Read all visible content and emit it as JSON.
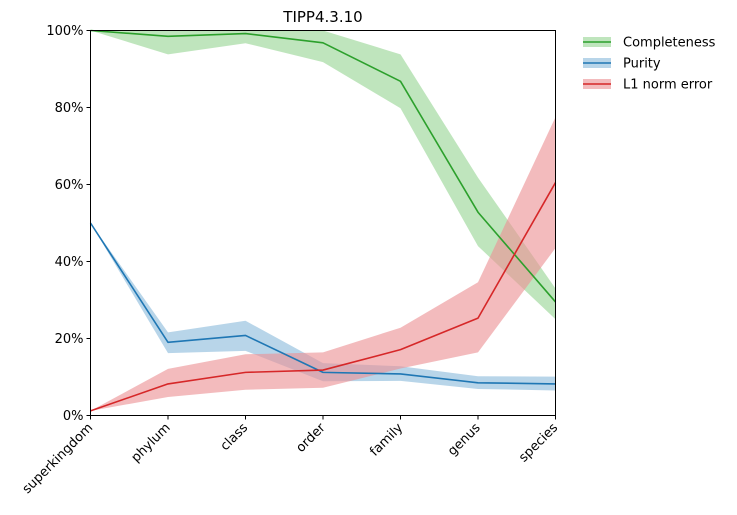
{
  "chart_data": {
    "type": "line",
    "title": "TIPP4.3.10",
    "xlabel": "",
    "ylabel": "",
    "categories": [
      "superkingdom",
      "phylum",
      "class",
      "order",
      "family",
      "genus",
      "species"
    ],
    "ylim": [
      0,
      100
    ],
    "yticks": [
      0,
      20,
      40,
      60,
      80,
      100
    ],
    "ytick_labels": [
      "0%",
      "20%",
      "40%",
      "60%",
      "80%",
      "100%"
    ],
    "grid": false,
    "legend_position": "outside-top-right",
    "series": [
      {
        "name": "Completeness",
        "color": "#2ca02c",
        "band_color": "#98d594",
        "values": [
          100,
          98.5,
          99.2,
          96.8,
          86.8,
          52.8,
          29.5
        ],
        "lower": [
          100,
          93.8,
          96.7,
          91.8,
          79.8,
          44.0,
          25.0
        ],
        "upper": [
          100,
          100,
          100,
          100,
          93.8,
          61.8,
          33.0
        ]
      },
      {
        "name": "Purity",
        "color": "#1f77b4",
        "band_color": "#8dbbdc",
        "values": [
          50.0,
          19.0,
          20.8,
          11.2,
          10.8,
          8.5,
          8.2
        ],
        "lower": [
          50.0,
          16.2,
          16.8,
          8.9,
          9.0,
          6.9,
          6.5
        ],
        "upper": [
          50.0,
          21.6,
          24.6,
          13.6,
          12.8,
          10.2,
          10.1
        ]
      },
      {
        "name": "L1 norm error",
        "color": "#d62728",
        "band_color": "#eb9294",
        "values": [
          1.2,
          8.2,
          11.2,
          11.8,
          17.1,
          25.3,
          60.5
        ],
        "lower": [
          1.2,
          4.8,
          6.7,
          7.2,
          12.2,
          16.4,
          43.5
        ],
        "upper": [
          1.2,
          12.1,
          15.9,
          16.4,
          22.8,
          34.6,
          77.5
        ]
      }
    ]
  }
}
